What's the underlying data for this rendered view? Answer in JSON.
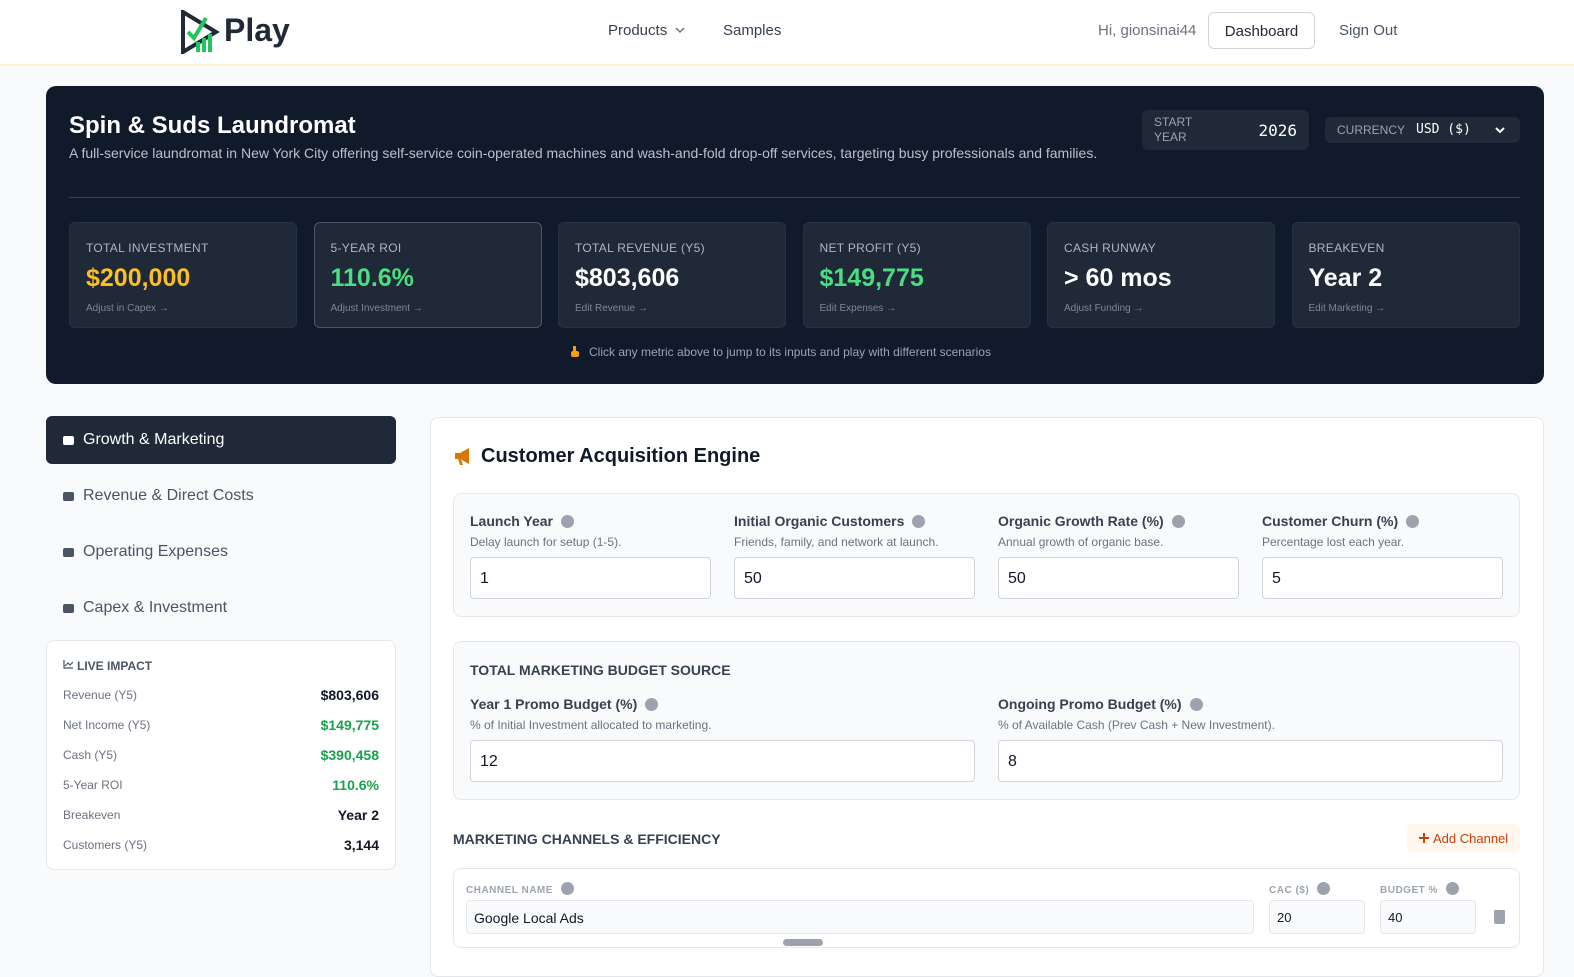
{
  "nav": {
    "brand": "Play",
    "links": [
      "Products",
      "Samples"
    ],
    "greeting": "Hi, gionsinai44",
    "dashboard": "Dashboard",
    "signout": "Sign Out"
  },
  "header": {
    "title": "Spin & Suds Laundromat",
    "description": "A full-service laundromat in New York City offering self-service coin-operated machines and wash-and-fold drop-off services, targeting busy professionals and families.",
    "start_year_label": "START YEAR",
    "start_year": "2026",
    "currency_label": "CURRENCY",
    "currency": "USD ($)"
  },
  "metrics": [
    {
      "label": "TOTAL INVESTMENT",
      "value": "$200,000",
      "link": "Adjust in Capex →"
    },
    {
      "label": "5-YEAR ROI",
      "value": "110.6%",
      "link": "Adjust Investment →"
    },
    {
      "label": "TOTAL REVENUE (Y5)",
      "value": "$803,606",
      "link": "Edit Revenue →"
    },
    {
      "label": "NET PROFIT (Y5)",
      "value": "$149,775",
      "link": "Edit Expenses →"
    },
    {
      "label": "CASH RUNWAY",
      "value": "> 60 mos",
      "link": "Adjust Funding →"
    },
    {
      "label": "BREAKEVEN",
      "value": "Year 2",
      "link": "Edit Marketing →"
    }
  ],
  "hint": "Click any metric above to jump to its inputs and play with different scenarios",
  "sidebar": {
    "tabs": [
      "Growth & Marketing",
      "Revenue & Direct Costs",
      "Operating Expenses",
      "Capex & Investment"
    ],
    "live_impact": {
      "title": "LIVE IMPACT",
      "rows": [
        [
          "Revenue (Y5)",
          "$803,606"
        ],
        [
          "Net Income (Y5)",
          "$149,775"
        ],
        [
          "Cash (Y5)",
          "$390,458"
        ],
        [
          "5-Year ROI",
          "110.6%"
        ],
        [
          "Breakeven",
          "Year 2"
        ],
        [
          "Customers (Y5)",
          "3,144"
        ]
      ]
    }
  },
  "section": {
    "title": "Customer Acquisition Engine",
    "fields": [
      {
        "label": "Launch Year",
        "help": "Delay launch for setup (1-5).",
        "value": 1
      },
      {
        "label": "Initial Organic Customers",
        "help": "Friends, family, and network at launch.",
        "value": 50
      },
      {
        "label": "Organic Growth Rate (%)",
        "help": "Annual growth of organic base.",
        "value": 50
      },
      {
        "label": "Customer Churn (%)",
        "help": "Percentage lost each year.",
        "value": 5
      }
    ],
    "budget": {
      "title": "TOTAL MARKETING BUDGET SOURCE",
      "fields": [
        {
          "label": "Year 1 Promo Budget (%)",
          "help": "% of Initial Investment allocated to marketing.",
          "value": 12
        },
        {
          "label": "Ongoing Promo Budget (%)",
          "help": "% of Available Cash (Prev Cash + New Investment).",
          "value": 8
        }
      ]
    },
    "channels": {
      "title": "MARKETING CHANNELS & EFFICIENCY",
      "add": "Add Channel",
      "columns": [
        "CHANNEL NAME",
        "CAC ($)",
        "BUDGET %"
      ],
      "rows": [
        [
          "Google Local Ads",
          20,
          40
        ]
      ]
    }
  }
}
